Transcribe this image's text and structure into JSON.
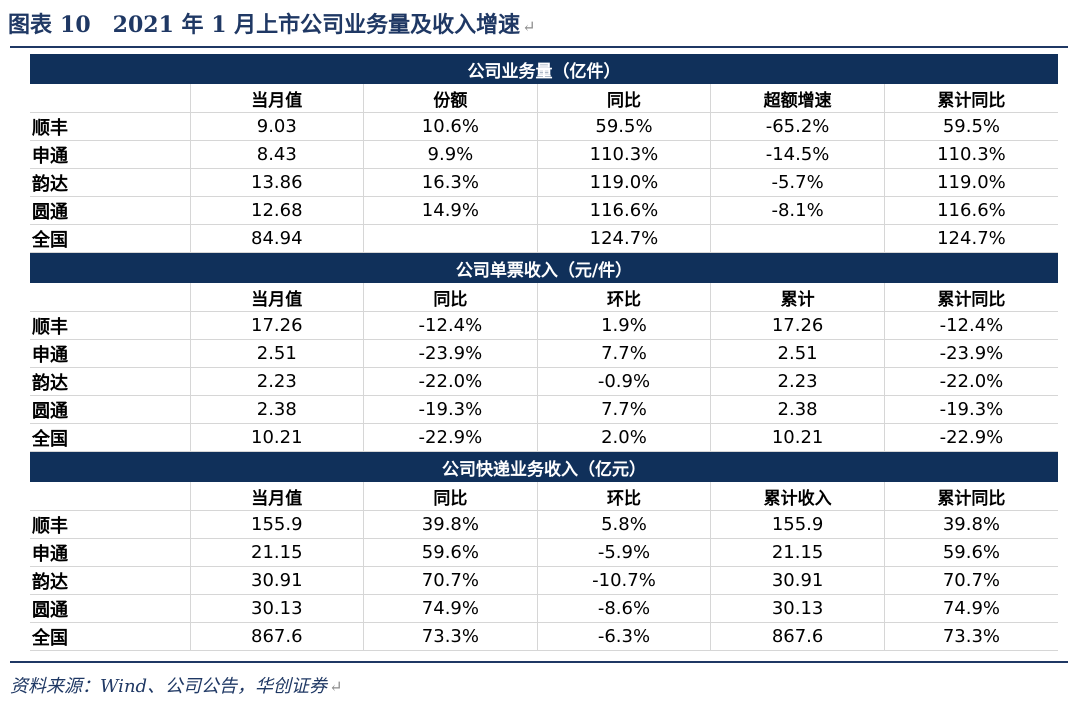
{
  "title": {
    "label": "图表",
    "number": "10",
    "text": "2021 年 1 月上市公司业务量及收入增速"
  },
  "sections": [
    {
      "title": "公司业务量（亿件）",
      "headers": [
        "",
        "当月值",
        "份额",
        "同比",
        "超额增速",
        "累计同比"
      ],
      "rows": [
        [
          "顺丰",
          "9.03",
          "10.6%",
          "59.5%",
          "-65.2%",
          "59.5%"
        ],
        [
          "申通",
          "8.43",
          "9.9%",
          "110.3%",
          "-14.5%",
          "110.3%"
        ],
        [
          "韵达",
          "13.86",
          "16.3%",
          "119.0%",
          "-5.7%",
          "119.0%"
        ],
        [
          "圆通",
          "12.68",
          "14.9%",
          "116.6%",
          "-8.1%",
          "116.6%"
        ],
        [
          "全国",
          "84.94",
          "",
          "124.7%",
          "",
          "124.7%"
        ]
      ]
    },
    {
      "title": "公司单票收入（元/件）",
      "headers": [
        "",
        "当月值",
        "同比",
        "环比",
        "累计",
        "累计同比"
      ],
      "rows": [
        [
          "顺丰",
          "17.26",
          "-12.4%",
          "1.9%",
          "17.26",
          "-12.4%"
        ],
        [
          "申通",
          "2.51",
          "-23.9%",
          "7.7%",
          "2.51",
          "-23.9%"
        ],
        [
          "韵达",
          "2.23",
          "-22.0%",
          "-0.9%",
          "2.23",
          "-22.0%"
        ],
        [
          "圆通",
          "2.38",
          "-19.3%",
          "7.7%",
          "2.38",
          "-19.3%"
        ],
        [
          "全国",
          "10.21",
          "-22.9%",
          "2.0%",
          "10.21",
          "-22.9%"
        ]
      ]
    },
    {
      "title": "公司快递业务收入（亿元）",
      "headers": [
        "",
        "当月值",
        "同比",
        "环比",
        "累计收入",
        "累计同比"
      ],
      "rows": [
        [
          "顺丰",
          "155.9",
          "39.8%",
          "5.8%",
          "155.9",
          "39.8%"
        ],
        [
          "申通",
          "21.15",
          "59.6%",
          "-5.9%",
          "21.15",
          "59.6%"
        ],
        [
          "韵达",
          "30.91",
          "70.7%",
          "-10.7%",
          "30.91",
          "70.7%"
        ],
        [
          "圆通",
          "30.13",
          "74.9%",
          "-8.6%",
          "30.13",
          "74.9%"
        ],
        [
          "全国",
          "867.6",
          "73.3%",
          "-6.3%",
          "867.6",
          "73.3%"
        ]
      ]
    }
  ],
  "source": "资料来源：Wind、公司公告，华创证券"
}
